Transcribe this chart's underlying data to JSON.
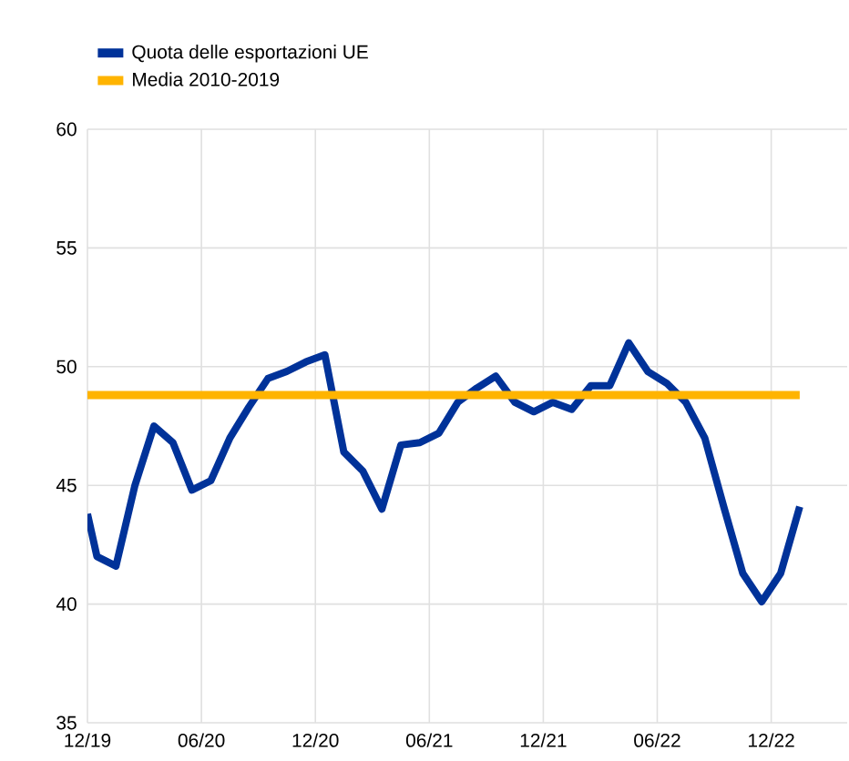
{
  "chart_data": {
    "type": "line",
    "x": [
      "2019-12-01",
      "2019-12-16",
      "2020-01-16",
      "2020-02-16",
      "2020-03-16",
      "2020-04-16",
      "2020-05-16",
      "2020-06-16",
      "2020-07-16",
      "2020-08-16",
      "2020-09-16",
      "2020-10-16",
      "2020-11-16",
      "2020-12-16",
      "2021-01-16",
      "2021-02-16",
      "2021-03-16",
      "2021-04-16",
      "2021-05-16",
      "2021-06-16",
      "2021-07-16",
      "2021-08-16",
      "2021-09-16",
      "2021-10-16",
      "2021-11-16",
      "2021-12-16",
      "2022-01-16",
      "2022-02-16",
      "2022-03-16",
      "2022-04-16",
      "2022-05-16",
      "2022-06-16",
      "2022-07-16",
      "2022-08-16",
      "2022-09-16",
      "2022-10-16",
      "2022-11-16",
      "2022-12-16",
      "2023-01-16"
    ],
    "series": [
      {
        "name": "Quota delle esportazioni UE",
        "color": "#003299",
        "values": [
          43.8,
          42.0,
          41.6,
          45.0,
          47.5,
          46.8,
          44.8,
          45.2,
          47.0,
          48.3,
          49.5,
          49.8,
          50.2,
          50.5,
          46.4,
          45.6,
          44.0,
          46.7,
          46.8,
          47.2,
          48.5,
          49.1,
          49.6,
          48.5,
          48.1,
          48.5,
          48.2,
          49.2,
          49.2,
          51.0,
          49.8,
          49.3,
          48.5,
          47.0,
          44.1,
          41.3,
          40.1,
          41.3,
          44.1
        ]
      },
      {
        "name": "Media 2010-2019",
        "color": "#ffb400",
        "x": [
          "2019-12-01",
          "2023-01-16"
        ],
        "values": [
          48.8,
          48.8
        ]
      }
    ],
    "xlim": [
      "2019-12-01",
      "2023-04-01"
    ],
    "ylim": [
      35,
      60
    ],
    "xticks": [
      {
        "value": "2019-12-01",
        "label": "12/19"
      },
      {
        "value": "2020-06-01",
        "label": "06/20"
      },
      {
        "value": "2020-12-01",
        "label": "12/20"
      },
      {
        "value": "2021-06-01",
        "label": "06/21"
      },
      {
        "value": "2021-12-01",
        "label": "12/21"
      },
      {
        "value": "2022-06-01",
        "label": "06/22"
      },
      {
        "value": "2022-12-01",
        "label": "12/22"
      }
    ],
    "yticks": [
      35,
      40,
      45,
      50,
      55,
      60
    ],
    "grid": true,
    "legend": "top left",
    "marker": "none",
    "line_style": "solid"
  }
}
